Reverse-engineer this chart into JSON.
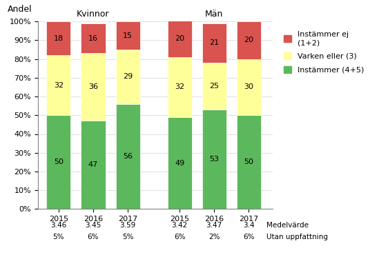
{
  "groups": [
    "Kvinnor",
    "Män"
  ],
  "years": [
    "2015",
    "2016",
    "2017"
  ],
  "instammer": [
    50,
    47,
    56,
    49,
    53,
    50
  ],
  "varken": [
    32,
    36,
    29,
    32,
    25,
    30
  ],
  "instammer_ej": [
    18,
    16,
    15,
    20,
    21,
    20
  ],
  "medelvarde": [
    "3.46",
    "3.45",
    "3.59",
    "3.42",
    "3.47",
    "3.4"
  ],
  "utan_uppfattning": [
    "5%",
    "6%",
    "5%",
    "6%",
    "2%",
    "6%"
  ],
  "color_instammer": "#5cb85c",
  "color_varken": "#ffff99",
  "color_instammer_ej": "#d9534f",
  "andel_label": "Andel",
  "legend_ej": "Instämmer ej\n(1+2)",
  "legend_varken": "Varken eller (3)",
  "legend_instammer": "Instämmer (4+5)",
  "label_medelvarde": "Medelvärde",
  "label_utan": "Utan uppfattning",
  "bar_width": 0.7,
  "positions": [
    0,
    1,
    2,
    3.5,
    4.5,
    5.5
  ]
}
